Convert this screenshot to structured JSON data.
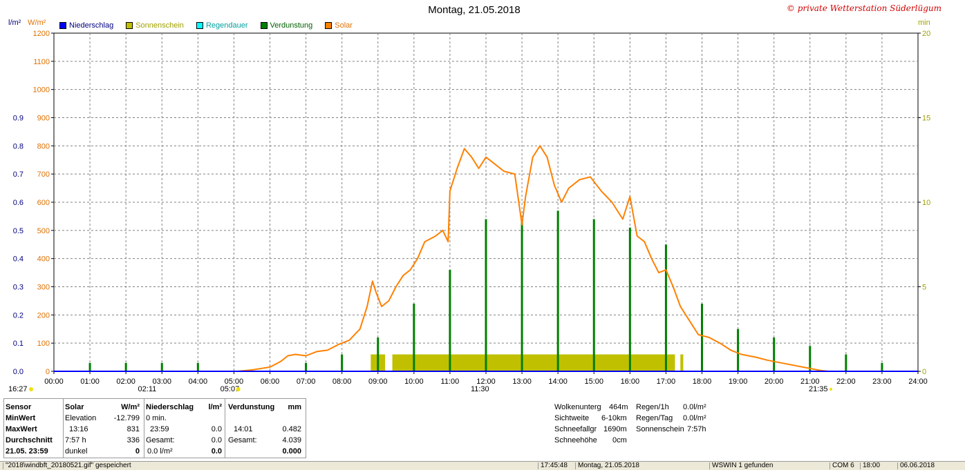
{
  "title": "Montag, 21.05.2018",
  "copyright": "© private Wetterstation Süderlügum",
  "units": {
    "left1": "l/m²",
    "left2": "W/m²",
    "right": "min"
  },
  "legend": [
    {
      "label": "Niederschlag",
      "color": "#0000ff"
    },
    {
      "label": "Sonnenschein",
      "color": "#c0c000"
    },
    {
      "label": "Regendauer",
      "color": "#00ffff"
    },
    {
      "label": "Verdunstung",
      "color": "#008000"
    },
    {
      "label": "Solar",
      "color": "#ff8000"
    }
  ],
  "chart_data": {
    "type": "line",
    "x_range_hours": [
      0,
      24
    ],
    "x_ticks": [
      "00:00",
      "01:00",
      "02:00",
      "03:00",
      "04:00",
      "05:00",
      "06:00",
      "07:00",
      "08:00",
      "09:00",
      "10:00",
      "11:00",
      "12:00",
      "13:00",
      "14:00",
      "15:00",
      "16:00",
      "17:00",
      "18:00",
      "19:00",
      "20:00",
      "21:00",
      "22:00",
      "23:00",
      "24:00"
    ],
    "y_left_precip": {
      "range": [
        0,
        1
      ],
      "ticks": [
        "0.0",
        "0.1",
        "0.2",
        "0.3",
        "0.4",
        "0.5",
        "0.6",
        "0.7",
        "0.8",
        "0.9"
      ]
    },
    "y_left_solar": {
      "range": [
        0,
        1200
      ],
      "ticks": [
        "0",
        "100",
        "200",
        "300",
        "400",
        "500",
        "600",
        "700",
        "800",
        "900",
        "1000",
        "1100",
        "1200"
      ]
    },
    "y_right_minutes": {
      "range": [
        0,
        20
      ],
      "ticks": [
        "0",
        "5",
        "10",
        "15",
        "20"
      ]
    },
    "grid": true,
    "solar_series": [
      [
        5.1,
        0
      ],
      [
        5.5,
        5
      ],
      [
        6.0,
        15
      ],
      [
        6.3,
        35
      ],
      [
        6.5,
        55
      ],
      [
        6.7,
        60
      ],
      [
        7.0,
        55
      ],
      [
        7.3,
        70
      ],
      [
        7.6,
        75
      ],
      [
        7.9,
        95
      ],
      [
        8.2,
        110
      ],
      [
        8.5,
        150
      ],
      [
        8.7,
        230
      ],
      [
        8.85,
        320
      ],
      [
        8.95,
        280
      ],
      [
        9.1,
        230
      ],
      [
        9.3,
        250
      ],
      [
        9.5,
        300
      ],
      [
        9.7,
        340
      ],
      [
        9.9,
        360
      ],
      [
        10.1,
        400
      ],
      [
        10.3,
        460
      ],
      [
        10.6,
        480
      ],
      [
        10.8,
        500
      ],
      [
        10.95,
        460
      ],
      [
        11.0,
        640
      ],
      [
        11.2,
        720
      ],
      [
        11.4,
        790
      ],
      [
        11.6,
        760
      ],
      [
        11.8,
        720
      ],
      [
        12.0,
        760
      ],
      [
        12.2,
        740
      ],
      [
        12.5,
        710
      ],
      [
        12.8,
        700
      ],
      [
        13.0,
        520
      ],
      [
        13.1,
        620
      ],
      [
        13.3,
        760
      ],
      [
        13.5,
        800
      ],
      [
        13.7,
        760
      ],
      [
        13.9,
        660
      ],
      [
        14.1,
        600
      ],
      [
        14.3,
        650
      ],
      [
        14.6,
        680
      ],
      [
        14.9,
        690
      ],
      [
        15.2,
        640
      ],
      [
        15.5,
        600
      ],
      [
        15.8,
        540
      ],
      [
        16.0,
        620
      ],
      [
        16.2,
        480
      ],
      [
        16.4,
        460
      ],
      [
        16.6,
        400
      ],
      [
        16.8,
        350
      ],
      [
        17.0,
        360
      ],
      [
        17.2,
        300
      ],
      [
        17.4,
        230
      ],
      [
        17.6,
        190
      ],
      [
        17.9,
        130
      ],
      [
        18.2,
        120
      ],
      [
        18.5,
        100
      ],
      [
        18.8,
        75
      ],
      [
        19.1,
        60
      ],
      [
        19.5,
        50
      ],
      [
        19.8,
        40
      ],
      [
        20.2,
        30
      ],
      [
        20.6,
        20
      ],
      [
        21.0,
        10
      ],
      [
        21.3,
        3
      ],
      [
        21.5,
        0
      ]
    ],
    "verdunstung_minutes": [
      [
        1,
        0.5
      ],
      [
        2,
        0.5
      ],
      [
        3,
        0.5
      ],
      [
        4,
        0.5
      ],
      [
        7,
        0.5
      ],
      [
        8,
        1
      ],
      [
        9,
        2
      ],
      [
        10,
        4
      ],
      [
        11,
        6
      ],
      [
        12,
        9
      ],
      [
        13,
        9
      ],
      [
        14,
        9.5
      ],
      [
        15,
        9
      ],
      [
        16,
        8.5
      ],
      [
        17,
        7.5
      ],
      [
        18,
        4
      ],
      [
        19,
        2.5
      ],
      [
        20,
        2
      ],
      [
        21,
        1.5
      ],
      [
        22,
        1
      ],
      [
        23,
        0.5
      ]
    ],
    "sonnenschein_minutes": [
      [
        8.8,
        9.2,
        1
      ],
      [
        9.4,
        17.25,
        1
      ],
      [
        17.4,
        17.48,
        1
      ]
    ],
    "markers": {
      "sunrise_left": "16:27",
      "t1": "02:11",
      "t2": "05:07",
      "t3": "11:30",
      "t4": "21:35"
    }
  },
  "stats": {
    "col1": {
      "h0": "Sensor",
      "r1": "MinWert",
      "r2": "MaxWert",
      "r3": "Durchschnitt",
      "r4": "21.05. 23:59"
    },
    "col2": {
      "h0": "Solar",
      "h0b": "W/m²",
      "r1a": "Elevation",
      "r1b": "-12.799",
      "r2a": "13:16",
      "r2b": "831",
      "r3a": "7:57 h",
      "r3b": "336",
      "r4a": "dunkel",
      "r4b": "0"
    },
    "col3": {
      "h0": "Niederschlag",
      "h0b": "l/m²",
      "r1a": "0 min.",
      "r2a": "23:59",
      "r2b": "0.0",
      "r3a": "Gesamt:",
      "r3b": "0.0",
      "r4a": "0.0 l/m²",
      "r4b": "0.0"
    },
    "col4": {
      "h0": "Verdunstung",
      "h0b": "mm",
      "r2a": "14:01",
      "r2b": "0.482",
      "r3a": "Gesamt:",
      "r3b": "4.039",
      "r4b": "0.000"
    }
  },
  "weather": {
    "wolken_l": "Wolkenunterg",
    "wolken_v": "464m",
    "sicht_l": "Sichtweite",
    "sicht_v": "6-10km",
    "schnee_l": "Schneefallgr",
    "schnee_v": "1690m",
    "hoehe_l": "Schneehöhe",
    "hoehe_v": "0cm",
    "regen1_l": "Regen/1h",
    "regen1_v": "0.0l/m²",
    "regentag_l": "Regen/Tag",
    "regentag_v": "0.0l/m²",
    "sonne_l": "Sonnenschein",
    "sonne_v": "7:57h"
  },
  "status": {
    "file": "\"2018\\windbft_20180521.gif\" gespeichert",
    "time": "17:45:48",
    "date": "Montag, 21.05.2018",
    "wswin": "WSWIN 1 gefunden",
    "com": "COM 6",
    "t": "18:00",
    "d": "06.06.2018"
  }
}
